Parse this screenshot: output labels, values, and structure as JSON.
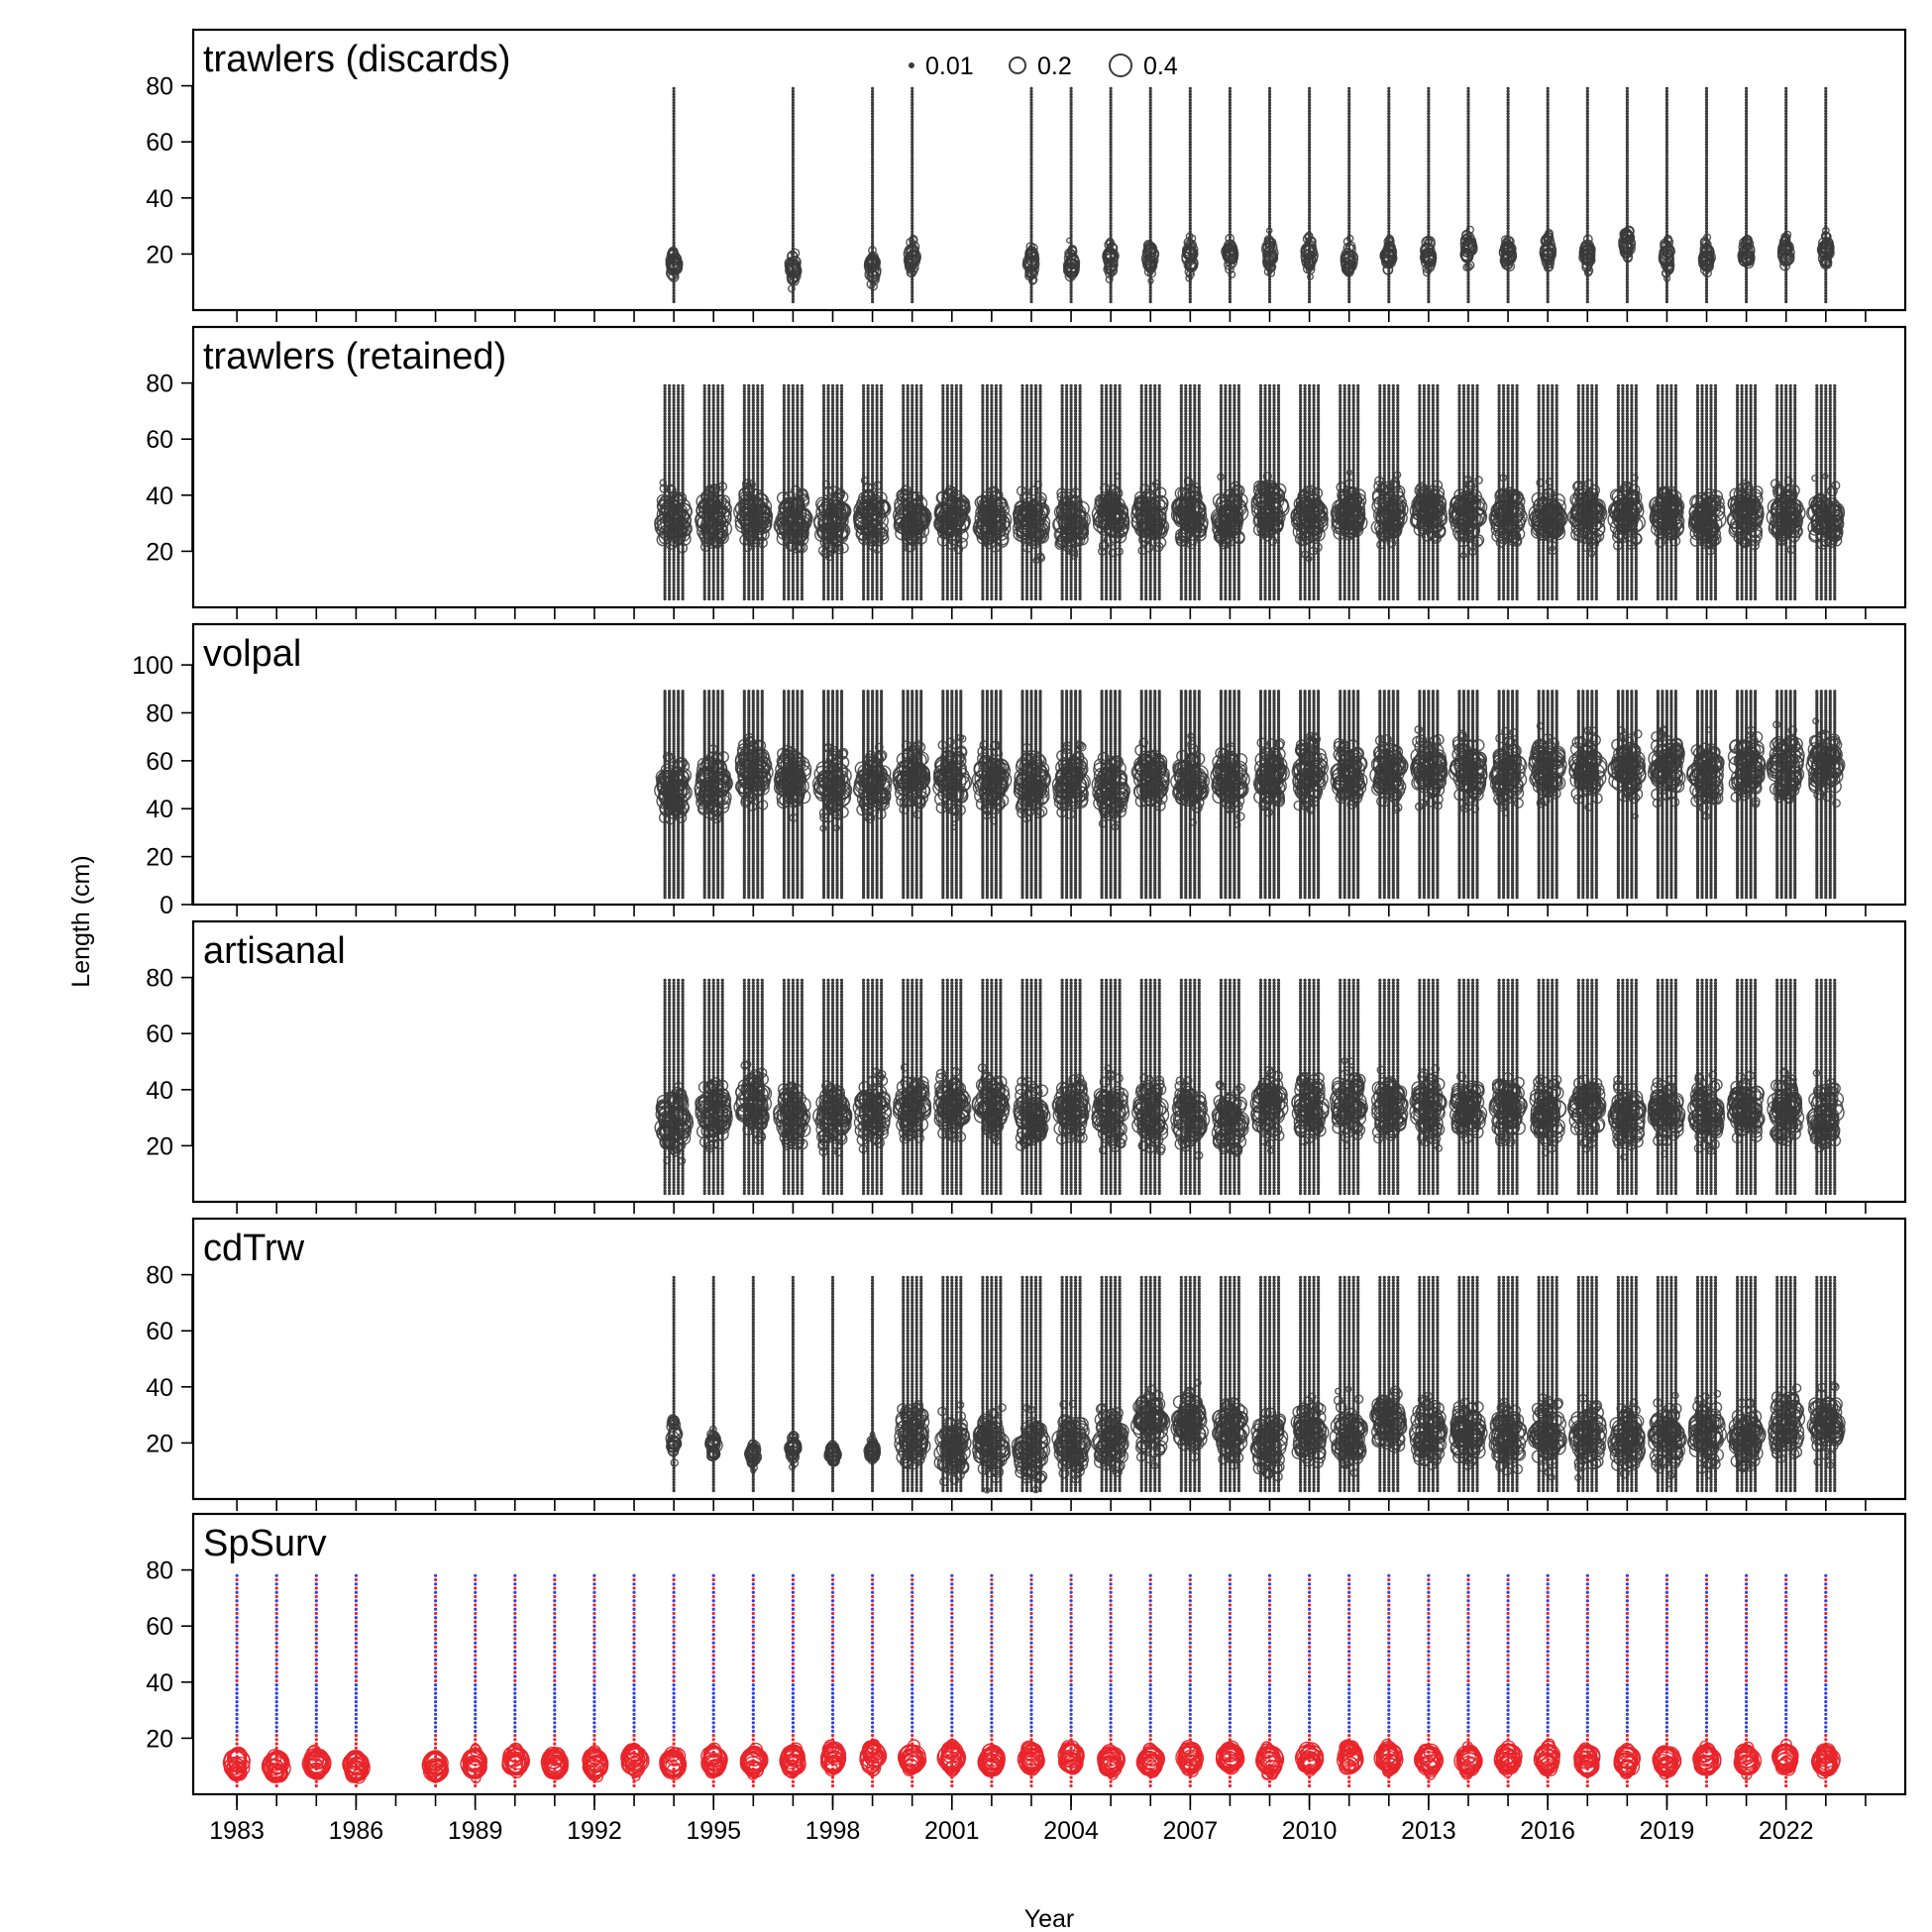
{
  "chart_data": {
    "type": "scatter",
    "subtype": "bubble",
    "xlabel": "Year",
    "ylabel": "Length (cm)",
    "xlim": [
      1981.9,
      2025.0
    ],
    "x_tick_labels": [
      "1983",
      "1986",
      "1989",
      "1992",
      "1995",
      "1998",
      "2001",
      "2004",
      "2007",
      "2010",
      "2013",
      "2016",
      "2019",
      "2022"
    ],
    "x_minor_ticks": "every year",
    "grid": false,
    "legend": {
      "placement": "top-center",
      "entries": [
        {
          "label": "0.01",
          "value": 0.01
        },
        {
          "label": "0.2",
          "value": 0.2
        },
        {
          "label": "0.4",
          "value": 0.4
        }
      ]
    },
    "colors": {
      "observed": "#3a3a3a",
      "survey_bubble": "#e8252b",
      "survey_dots": "#2f3ee8"
    },
    "panels": [
      {
        "name": "trawlers (discards)",
        "ylim": [
          0,
          100
        ],
        "y_ticks": [
          20,
          40,
          60,
          80
        ],
        "length_range": [
          3,
          79
        ],
        "years": [
          1994,
          1997,
          1999,
          2000,
          2003,
          2004,
          2005,
          2006,
          2007,
          2008,
          2009,
          2010,
          2011,
          2012,
          2013,
          2014,
          2015,
          2016,
          2017,
          2018,
          2019,
          2020,
          2021,
          2022,
          2023
        ],
        "mode_length_cm": [
          16,
          15,
          15,
          19,
          17,
          16,
          18,
          19,
          19,
          20,
          20,
          20,
          18,
          19,
          20,
          22,
          20,
          21,
          20,
          24,
          19,
          19,
          20,
          20,
          21
        ],
        "spread_cm": 6
      },
      {
        "name": "trawlers (retained)",
        "ylim": [
          0,
          100
        ],
        "y_ticks": [
          20,
          40,
          60,
          80
        ],
        "length_range": [
          3,
          79
        ],
        "years": [
          1994,
          1995,
          1996,
          1997,
          1998,
          1999,
          2000,
          2001,
          2002,
          2003,
          2004,
          2005,
          2006,
          2007,
          2008,
          2009,
          2010,
          2011,
          2012,
          2013,
          2014,
          2015,
          2016,
          2017,
          2018,
          2019,
          2020,
          2021,
          2022,
          2023
        ],
        "mode_length_cm": [
          31,
          32,
          33,
          31,
          31,
          32,
          32,
          32,
          31,
          31,
          31,
          32,
          32,
          33,
          33,
          35,
          32,
          33,
          34,
          34,
          33,
          33,
          32,
          33,
          33,
          33,
          32,
          33,
          33,
          32
        ],
        "spread_cm": 10
      },
      {
        "name": "volpal",
        "ylim": [
          0,
          117
        ],
        "y_ticks": [
          0,
          20,
          40,
          60,
          80,
          100
        ],
        "length_range": [
          3,
          89
        ],
        "years": [
          1994,
          1995,
          1996,
          1997,
          1998,
          1999,
          2000,
          2001,
          2002,
          2003,
          2004,
          2005,
          2006,
          2007,
          2008,
          2009,
          2010,
          2011,
          2012,
          2013,
          2014,
          2015,
          2016,
          2017,
          2018,
          2019,
          2020,
          2021,
          2022,
          2023
        ],
        "mode_length_cm": [
          48,
          50,
          55,
          52,
          50,
          50,
          53,
          52,
          52,
          51,
          51,
          50,
          53,
          52,
          52,
          54,
          55,
          55,
          56,
          57,
          56,
          56,
          57,
          57,
          56,
          57,
          54,
          58,
          58,
          58
        ],
        "spread_cm": 13
      },
      {
        "name": "artisanal",
        "ylim": [
          0,
          100
        ],
        "y_ticks": [
          20,
          40,
          60,
          80
        ],
        "length_range": [
          3,
          79
        ],
        "years": [
          1994,
          1995,
          1996,
          1997,
          1998,
          1999,
          2000,
          2001,
          2002,
          2003,
          2004,
          2005,
          2006,
          2007,
          2008,
          2009,
          2010,
          2011,
          2012,
          2013,
          2014,
          2015,
          2016,
          2017,
          2018,
          2019,
          2020,
          2021,
          2022,
          2023
        ],
        "mode_length_cm": [
          29,
          32,
          35,
          31,
          31,
          32,
          34,
          34,
          35,
          31,
          33,
          32,
          31,
          30,
          28,
          34,
          34,
          35,
          34,
          34,
          33,
          33,
          32,
          33,
          31,
          32,
          32,
          33,
          33,
          31
        ],
        "spread_cm": 11
      },
      {
        "name": "cdTrw",
        "ylim": [
          0,
          100
        ],
        "y_ticks": [
          20,
          40,
          60,
          80
        ],
        "length_range": [
          3,
          79
        ],
        "years": [
          1994,
          1995,
          1996,
          1997,
          1998,
          1999,
          2000,
          2001,
          2002,
          2003,
          2004,
          2005,
          2006,
          2007,
          2008,
          2009,
          2010,
          2011,
          2012,
          2013,
          2014,
          2015,
          2016,
          2017,
          2018,
          2019,
          2020,
          2021,
          2022,
          2023
        ],
        "mode_length_cm": [
          22,
          19,
          16,
          18,
          16,
          17,
          22,
          19,
          19,
          18,
          20,
          21,
          27,
          27,
          25,
          20,
          23,
          23,
          28,
          24,
          23,
          22,
          23,
          23,
          21,
          22,
          23,
          22,
          27,
          27
        ],
        "spread_cm": [
          8,
          5,
          4,
          5,
          4,
          4,
          11,
          11,
          11,
          11,
          11,
          11,
          11,
          11,
          11,
          11,
          11,
          11,
          11,
          11,
          11,
          11,
          11,
          11,
          11,
          11,
          11,
          11,
          11,
          11
        ]
      },
      {
        "name": "SpSurv",
        "ylim": [
          0,
          100
        ],
        "y_ticks": [
          20,
          40,
          60,
          80
        ],
        "length_range": [
          3,
          79
        ],
        "years": [
          1983,
          1984,
          1985,
          1986,
          1988,
          1989,
          1990,
          1991,
          1992,
          1993,
          1994,
          1995,
          1996,
          1997,
          1998,
          1999,
          2000,
          2001,
          2002,
          2003,
          2004,
          2005,
          2006,
          2007,
          2008,
          2009,
          2010,
          2011,
          2012,
          2013,
          2014,
          2015,
          2016,
          2017,
          2018,
          2019,
          2020,
          2021,
          2022,
          2023
        ],
        "mode_length_cm": [
          11,
          10,
          11,
          10,
          10,
          11,
          12,
          11,
          11,
          12,
          11,
          12,
          12,
          12,
          13,
          13,
          13,
          13,
          12,
          13,
          13,
          12,
          12,
          13,
          13,
          12,
          13,
          13,
          13,
          12,
          12,
          13,
          13,
          12,
          12,
          12,
          12,
          12,
          13,
          12
        ],
        "spread_cm": 4
      }
    ]
  }
}
